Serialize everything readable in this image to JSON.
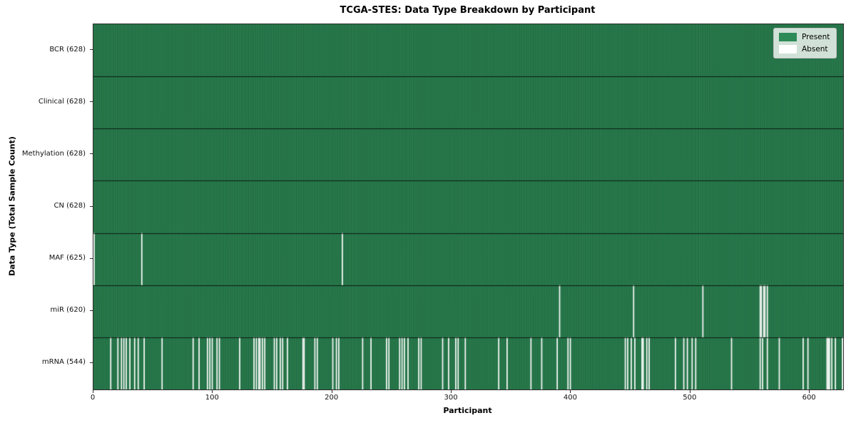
{
  "title": "TCGA-STES: Data Type Breakdown by Participant",
  "xlabel": "Participant",
  "ylabel": "Data Type (Total Sample Count)",
  "legend": {
    "present_label": "Present",
    "absent_label": "Absent"
  },
  "colors": {
    "present": "#2e8b57",
    "absent": "#ffffff",
    "cell_edge": "rgba(0,0,0,0.45)",
    "row_separator": "rgba(0,0,0,0.75)",
    "axis": "#2b2b2b"
  },
  "chart_data": {
    "type": "heatmap",
    "title": "TCGA-STES: Data Type Breakdown by Participant",
    "xlabel": "Participant",
    "ylabel": "Data Type (Total Sample Count)",
    "legend_entries": [
      "Present",
      "Absent"
    ],
    "legend_position": "upper right",
    "n_participants": 628,
    "x_range": [
      0,
      628
    ],
    "x_ticks": [
      0,
      100,
      200,
      300,
      400,
      500,
      600
    ],
    "rows": [
      {
        "data_type": "BCR",
        "label": "BCR (628)",
        "present_count": 628,
        "absent_count": 0,
        "absent_participants": []
      },
      {
        "data_type": "Clinical",
        "label": "Clinical (628)",
        "present_count": 628,
        "absent_count": 0,
        "absent_participants": []
      },
      {
        "data_type": "Methylation",
        "label": "Methylation (628)",
        "present_count": 628,
        "absent_count": 0,
        "absent_participants": []
      },
      {
        "data_type": "CN",
        "label": "CN (628)",
        "present_count": 628,
        "absent_count": 0,
        "absent_participants": []
      },
      {
        "data_type": "MAF",
        "label": "MAF (625)",
        "present_count": 625,
        "absent_count": 3,
        "absent_participants": [
          0,
          40,
          208
        ]
      },
      {
        "data_type": "miR",
        "label": "miR (620)",
        "present_count": 620,
        "absent_count": 8,
        "absent_participants": [
          390,
          452,
          510,
          558,
          559,
          561,
          562,
          564
        ]
      },
      {
        "data_type": "mRNA",
        "label": "mRNA (544)",
        "present_count": 544,
        "absent_count": 84,
        "absent_participants": [
          14,
          20,
          23,
          25,
          27,
          30,
          34,
          37,
          42,
          57,
          83,
          88,
          95,
          97,
          99,
          103,
          105,
          122,
          134,
          136,
          138,
          139,
          141,
          143,
          151,
          153,
          156,
          158,
          162,
          175,
          176,
          185,
          187,
          200,
          203,
          205,
          225,
          232,
          245,
          247,
          256,
          258,
          260,
          263,
          272,
          274,
          292,
          297,
          303,
          305,
          311,
          339,
          346,
          366,
          375,
          388,
          397,
          399,
          445,
          447,
          450,
          453,
          459,
          460,
          463,
          465,
          487,
          494,
          497,
          501,
          504,
          534,
          558,
          560,
          564,
          574,
          594,
          598,
          614,
          615,
          616,
          618,
          621,
          627
        ]
      }
    ]
  }
}
